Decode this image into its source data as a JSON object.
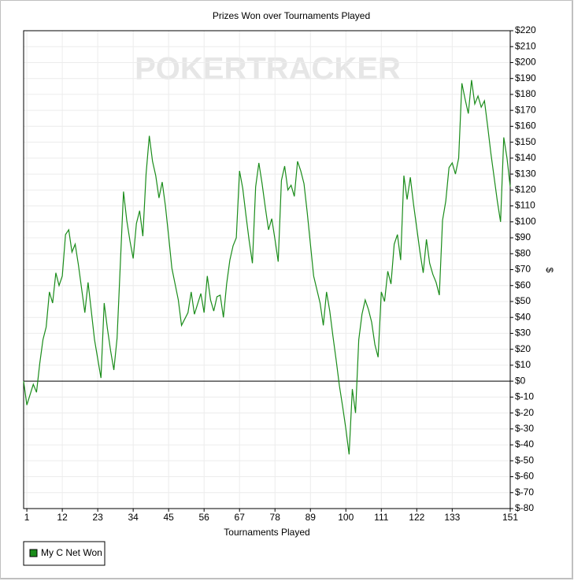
{
  "chart_data": {
    "type": "line",
    "title": "Prizes Won over Tournaments Played",
    "watermark": "POKERTRACKER",
    "x_label": "Tournaments Played",
    "y_label": "$",
    "xlim": [
      0,
      151
    ],
    "ylim": [
      -80,
      220
    ],
    "xticks": [
      1,
      12,
      23,
      34,
      45,
      56,
      67,
      78,
      89,
      100,
      111,
      122,
      133,
      151
    ],
    "yticks": [
      {
        "value": 220,
        "label": "$220"
      },
      {
        "value": 210,
        "label": "$210"
      },
      {
        "value": 200,
        "label": "$200"
      },
      {
        "value": 190,
        "label": "$190"
      },
      {
        "value": 180,
        "label": "$180"
      },
      {
        "value": 170,
        "label": "$170"
      },
      {
        "value": 160,
        "label": "$160"
      },
      {
        "value": 150,
        "label": "$150"
      },
      {
        "value": 140,
        "label": "$140"
      },
      {
        "value": 130,
        "label": "$130"
      },
      {
        "value": 120,
        "label": "$120"
      },
      {
        "value": 110,
        "label": "$110"
      },
      {
        "value": 100,
        "label": "$100"
      },
      {
        "value": 90,
        "label": "$90"
      },
      {
        "value": 80,
        "label": "$80"
      },
      {
        "value": 70,
        "label": "$70"
      },
      {
        "value": 60,
        "label": "$60"
      },
      {
        "value": 50,
        "label": "$50"
      },
      {
        "value": 40,
        "label": "$40"
      },
      {
        "value": 30,
        "label": "$30"
      },
      {
        "value": 20,
        "label": "$20"
      },
      {
        "value": 10,
        "label": "$10"
      },
      {
        "value": 0,
        "label": "$0"
      },
      {
        "value": -10,
        "label": "$-10"
      },
      {
        "value": -20,
        "label": "$-20"
      },
      {
        "value": -30,
        "label": "$-30"
      },
      {
        "value": -40,
        "label": "$-40"
      },
      {
        "value": -50,
        "label": "$-50"
      },
      {
        "value": -60,
        "label": "$-60"
      },
      {
        "value": -70,
        "label": "$-70"
      },
      {
        "value": -80,
        "label": "$-80"
      }
    ],
    "grid": true,
    "legend": "bottom-left",
    "x": [
      0,
      1,
      3,
      4,
      5,
      6,
      7,
      8,
      9,
      10,
      11,
      12,
      13,
      14,
      15,
      16,
      17,
      18,
      19,
      20,
      21,
      22,
      24,
      25,
      26,
      27,
      28,
      29,
      31,
      32,
      33,
      34,
      35,
      36,
      37,
      38,
      39,
      40,
      41,
      42,
      43,
      44,
      45,
      46,
      48,
      49,
      51,
      52,
      53,
      55,
      56,
      57,
      58,
      59,
      60,
      61,
      62,
      63,
      64,
      65,
      66,
      67,
      68,
      69,
      70,
      71,
      72,
      73,
      74,
      75,
      76,
      77,
      78,
      79,
      80,
      81,
      82,
      83,
      84,
      85,
      86,
      87,
      88,
      89,
      90,
      92,
      93,
      94,
      95,
      96,
      97,
      98,
      99,
      100,
      101,
      102,
      103,
      104,
      105,
      106,
      107,
      108,
      109,
      110,
      111,
      112,
      113,
      114,
      115,
      116,
      117,
      118,
      119,
      120,
      121,
      122,
      123,
      124,
      125,
      126,
      127,
      128,
      129,
      130,
      131,
      132,
      133,
      134,
      135,
      136,
      137,
      138,
      139,
      140,
      141,
      142,
      143,
      144,
      145,
      146,
      147,
      148,
      149,
      150,
      151
    ],
    "series": [
      {
        "name": "My C Net Won",
        "color": "#1a8c1a",
        "values": [
          0,
          -15,
          -2,
          -7,
          11,
          26,
          34,
          56,
          49,
          68,
          60,
          66,
          92,
          95,
          81,
          86,
          73,
          58,
          43,
          62,
          44,
          26,
          2,
          49,
          33,
          19,
          7,
          27,
          119,
          101,
          88,
          77,
          99,
          107,
          91,
          130,
          154,
          138,
          129,
          115,
          125,
          110,
          91,
          71,
          51,
          35,
          43,
          56,
          42,
          55,
          43,
          66,
          51,
          44,
          53,
          54,
          40,
          61,
          76,
          85,
          90,
          132,
          121,
          104,
          88,
          74,
          122,
          137,
          124,
          109,
          95,
          102,
          89,
          75,
          126,
          135,
          120,
          123,
          116,
          138,
          132,
          124,
          106,
          86,
          66,
          49,
          35,
          56,
          44,
          28,
          13,
          -3,
          -16,
          -30,
          -46,
          -5,
          -20,
          26,
          42,
          51,
          45,
          37,
          23,
          15,
          56,
          50,
          69,
          61,
          86,
          92,
          76,
          129,
          114,
          128,
          111,
          96,
          81,
          68,
          89,
          74,
          67,
          62,
          54,
          101,
          113,
          134,
          137,
          130,
          140,
          187,
          177,
          168,
          189,
          174,
          179,
          172,
          176,
          160,
          143,
          128,
          113,
          100,
          153,
          140,
          122
        ]
      }
    ]
  }
}
